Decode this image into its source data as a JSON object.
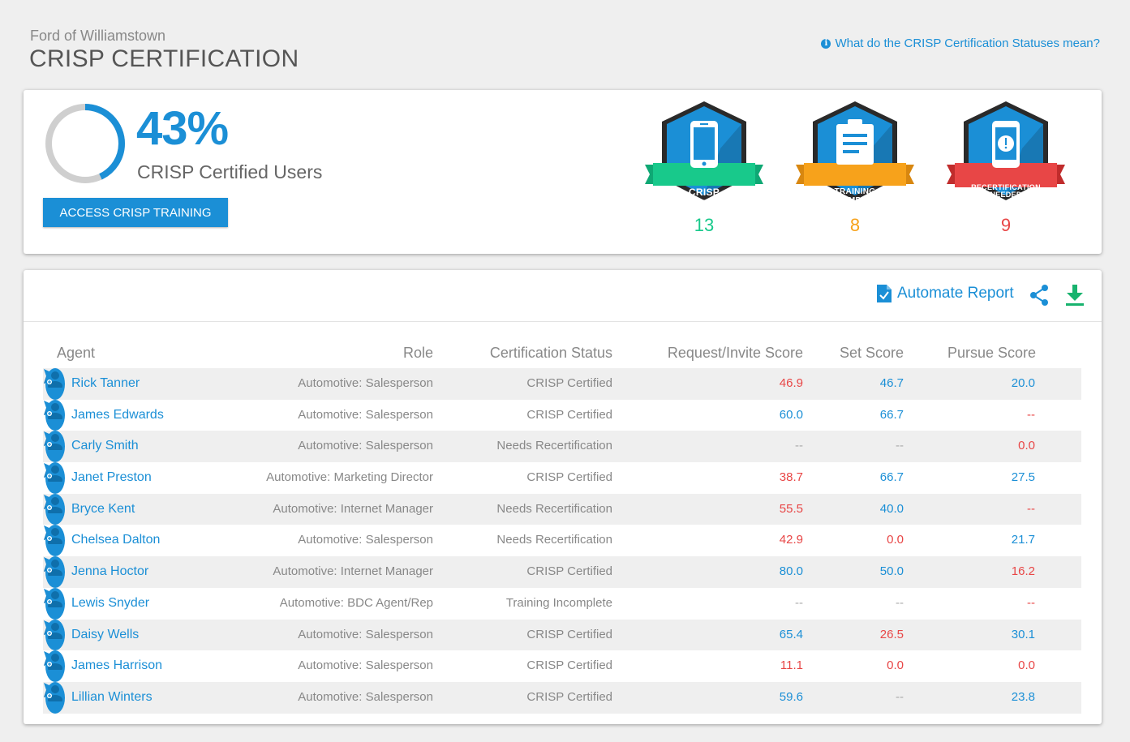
{
  "header": {
    "dealer": "Ford of Williamstown",
    "title": "CRISP CERTIFICATION",
    "help_link": "What do the CRISP Certification Statuses mean?"
  },
  "summary": {
    "percent_text": "43%",
    "percent_value": 0.43,
    "percent_label": "CRISP Certified Users",
    "access_button": "ACCESS CRISP TRAINING",
    "badges": [
      {
        "label": "CRISP CERTIFIED",
        "count": "13",
        "color": "#18c98b",
        "icon": "phone-icon"
      },
      {
        "label": "TRAINING INCOMPLETE",
        "count": "8",
        "color": "#f7a21b",
        "icon": "clipboard-icon"
      },
      {
        "label": "RECERTIFICATION NEEDED",
        "count": "9",
        "color": "#e84646",
        "icon": "phone-alert-icon"
      }
    ]
  },
  "toolbar": {
    "automate_label": "Automate Report",
    "share_icon": "share-icon",
    "download_icon": "download-icon"
  },
  "table": {
    "columns": [
      "Agent",
      "Role",
      "Certification Status",
      "Request/Invite Score",
      "Set Score",
      "Pursue Score"
    ],
    "rows": [
      {
        "agent": "Rick Tanner",
        "role": "Automotive: Salesperson",
        "status": "CRISP Certified",
        "request": "46.9",
        "set": "46.7",
        "pursue": "20.0",
        "rc": "red",
        "sc": "blue",
        "pc": "blue"
      },
      {
        "agent": "James Edwards",
        "role": "Automotive: Salesperson",
        "status": "CRISP Certified",
        "request": "60.0",
        "set": "66.7",
        "pursue": "--",
        "rc": "blue",
        "sc": "blue",
        "pc": "dash-red"
      },
      {
        "agent": "Carly Smith",
        "role": "Automotive: Salesperson",
        "status": "Needs Recertification",
        "request": "--",
        "set": "--",
        "pursue": "0.0",
        "rc": "dash",
        "sc": "dash",
        "pc": "red"
      },
      {
        "agent": "Janet Preston",
        "role": "Automotive: Marketing Director",
        "status": "CRISP Certified",
        "request": "38.7",
        "set": "66.7",
        "pursue": "27.5",
        "rc": "red",
        "sc": "blue",
        "pc": "blue"
      },
      {
        "agent": "Bryce Kent",
        "role": "Automotive: Internet Manager",
        "status": "Needs Recertification",
        "request": "55.5",
        "set": "40.0",
        "pursue": "--",
        "rc": "red",
        "sc": "blue",
        "pc": "dash-red"
      },
      {
        "agent": "Chelsea Dalton",
        "role": "Automotive: Salesperson",
        "status": "Needs Recertification",
        "request": "42.9",
        "set": "0.0",
        "pursue": "21.7",
        "rc": "red",
        "sc": "red",
        "pc": "blue"
      },
      {
        "agent": "Jenna Hoctor",
        "role": "Automotive: Internet Manager",
        "status": "CRISP Certified",
        "request": "80.0",
        "set": "50.0",
        "pursue": "16.2",
        "rc": "blue",
        "sc": "blue",
        "pc": "red"
      },
      {
        "agent": "Lewis Snyder",
        "role": "Automotive: BDC Agent/Rep",
        "status": "Training Incomplete",
        "request": "--",
        "set": "--",
        "pursue": "--",
        "rc": "dash",
        "sc": "dash",
        "pc": "dash-red"
      },
      {
        "agent": "Daisy Wells",
        "role": "Automotive: Salesperson",
        "status": "CRISP Certified",
        "request": "65.4",
        "set": "26.5",
        "pursue": "30.1",
        "rc": "blue",
        "sc": "red",
        "pc": "blue"
      },
      {
        "agent": "James Harrison",
        "role": "Automotive: Salesperson",
        "status": "CRISP Certified",
        "request": "11.1",
        "set": "0.0",
        "pursue": "0.0",
        "rc": "red",
        "sc": "red",
        "pc": "red"
      },
      {
        "agent": "Lillian Winters",
        "role": "Automotive: Salesperson",
        "status": "CRISP Certified",
        "request": "59.6",
        "set": "--",
        "pursue": "23.8",
        "rc": "blue",
        "sc": "dash",
        "pc": "blue"
      }
    ]
  }
}
